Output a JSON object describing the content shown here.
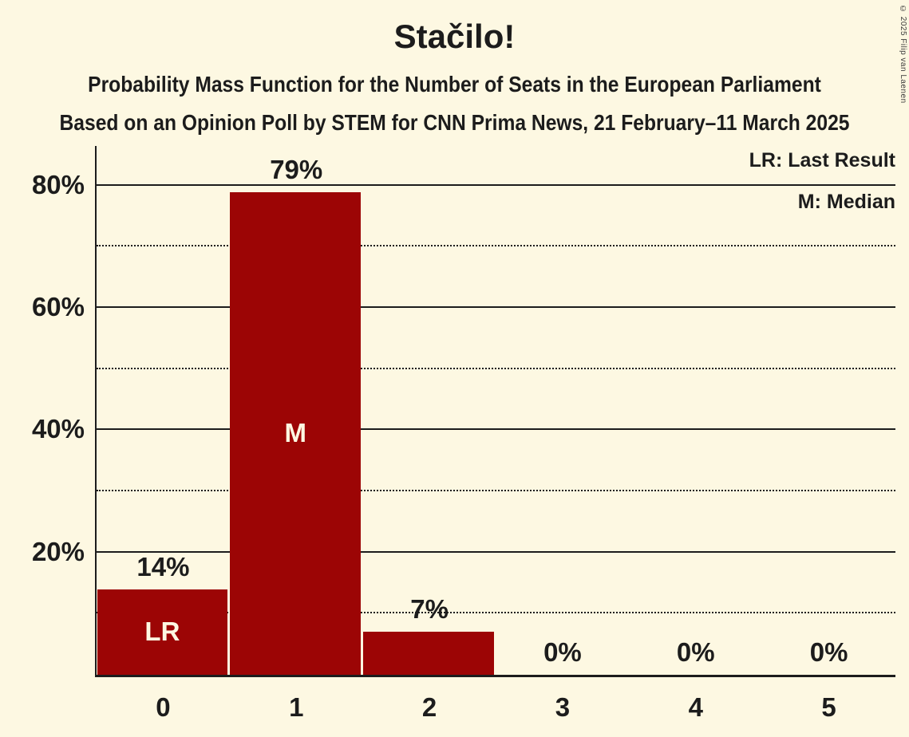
{
  "page": {
    "background": "#fdf8e2",
    "copyright": "© 2025 Filip van Laenen"
  },
  "header": {
    "title": "Stačilo!",
    "subtitle": "Probability Mass Function for the Number of Seats in the European Parliament",
    "poll_details": "Based on an Opinion Poll by STEM for CNN Prima News, 21 February–11 March 2025"
  },
  "chart_data": {
    "type": "bar",
    "title": "Stačilo!",
    "categories": [
      "0",
      "1",
      "2",
      "3",
      "4",
      "5"
    ],
    "values": [
      14,
      79,
      7,
      0,
      0,
      0
    ],
    "value_labels": [
      "14%",
      "79%",
      "7%",
      "0%",
      "0%",
      "0%"
    ],
    "inner_labels": [
      "LR",
      "M",
      null,
      null,
      null,
      null
    ],
    "ylim": [
      0,
      86.5
    ],
    "gridlines_solid": [
      20,
      40,
      60,
      80
    ],
    "gridlines_dotted": [
      10,
      30,
      50,
      70
    ],
    "yticks": [
      {
        "value": 20,
        "label": "20%"
      },
      {
        "value": 40,
        "label": "40%"
      },
      {
        "value": 60,
        "label": "60%"
      },
      {
        "value": 80,
        "label": "80%"
      }
    ],
    "legend": [
      "LR: Last Result",
      "M: Median"
    ],
    "legend_position": "top-right",
    "grid": true,
    "bar_color": "#9c0505",
    "inner_label_color": "#fdf8e2",
    "text_color": "#1c1c1c",
    "background_color": "#fdf8e2"
  }
}
